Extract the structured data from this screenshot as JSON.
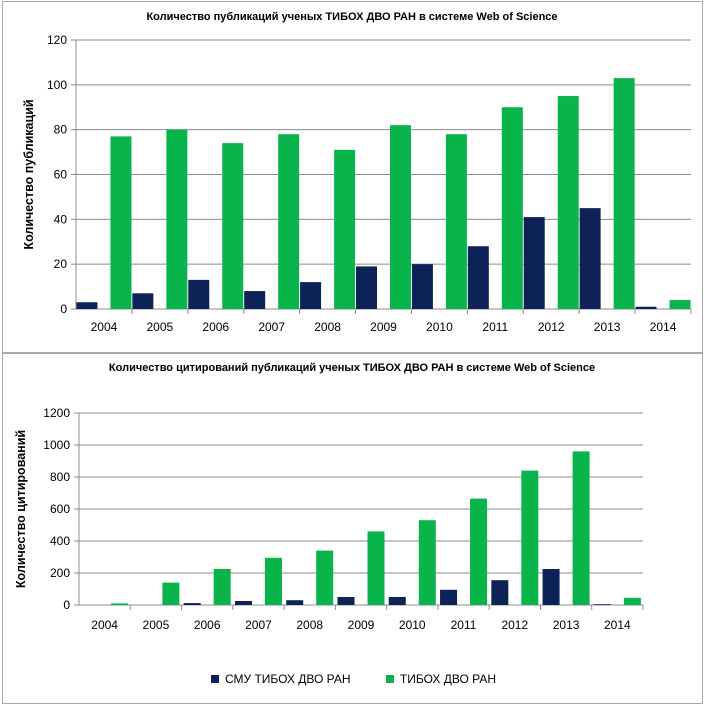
{
  "colors": {
    "smu": "#0d2257",
    "tiboh": "#09b44a",
    "grid": "#8c8c8c",
    "axis": "#8c8c8c"
  },
  "legend": {
    "smu_label": "СМУ ТИБОХ ДВО РАН",
    "tiboh_label": "ТИБОХ ДВО РАН"
  },
  "chart_data": [
    {
      "type": "bar",
      "title": "Количество публикаций ученых ТИБОХ ДВО РАН в системе Web of Science",
      "xlabel": "",
      "ylabel": "Количество публикаций",
      "ylim": [
        0,
        120
      ],
      "yticks": [
        0,
        20,
        40,
        60,
        80,
        100,
        120
      ],
      "categories": [
        "2004",
        "2005",
        "2006",
        "2007",
        "2008",
        "2009",
        "2010",
        "2011",
        "2012",
        "2013",
        "2014"
      ],
      "series": [
        {
          "name": "СМУ ТИБОХ ДВО РАН",
          "values": [
            3,
            7,
            13,
            8,
            12,
            19,
            20,
            28,
            41,
            45,
            1
          ]
        },
        {
          "name": "ТИБОХ ДВО РАН",
          "values": [
            77,
            80,
            74,
            78,
            71,
            82,
            78,
            90,
            95,
            103,
            4
          ]
        }
      ],
      "grid": true
    },
    {
      "type": "bar",
      "title": "Количество цитирований публикаций ученых ТИБОХ ДВО РАН в системе Web of Science",
      "xlabel": "",
      "ylabel": "Количество цитирований",
      "ylim": [
        0,
        1200
      ],
      "yticks": [
        0,
        200,
        400,
        600,
        800,
        1000,
        1200
      ],
      "categories": [
        "2004",
        "2005",
        "2006",
        "2007",
        "2008",
        "2009",
        "2010",
        "2011",
        "2012",
        "2013",
        "2014"
      ],
      "series": [
        {
          "name": "СМУ ТИБОХ ДВО РАН",
          "values": [
            0,
            0,
            12,
            25,
            30,
            50,
            50,
            95,
            155,
            225,
            5
          ]
        },
        {
          "name": "ТИБОХ ДВО РАН",
          "values": [
            10,
            140,
            225,
            295,
            340,
            460,
            530,
            665,
            840,
            960,
            45
          ]
        }
      ],
      "grid": true,
      "legend": "bottom"
    }
  ]
}
